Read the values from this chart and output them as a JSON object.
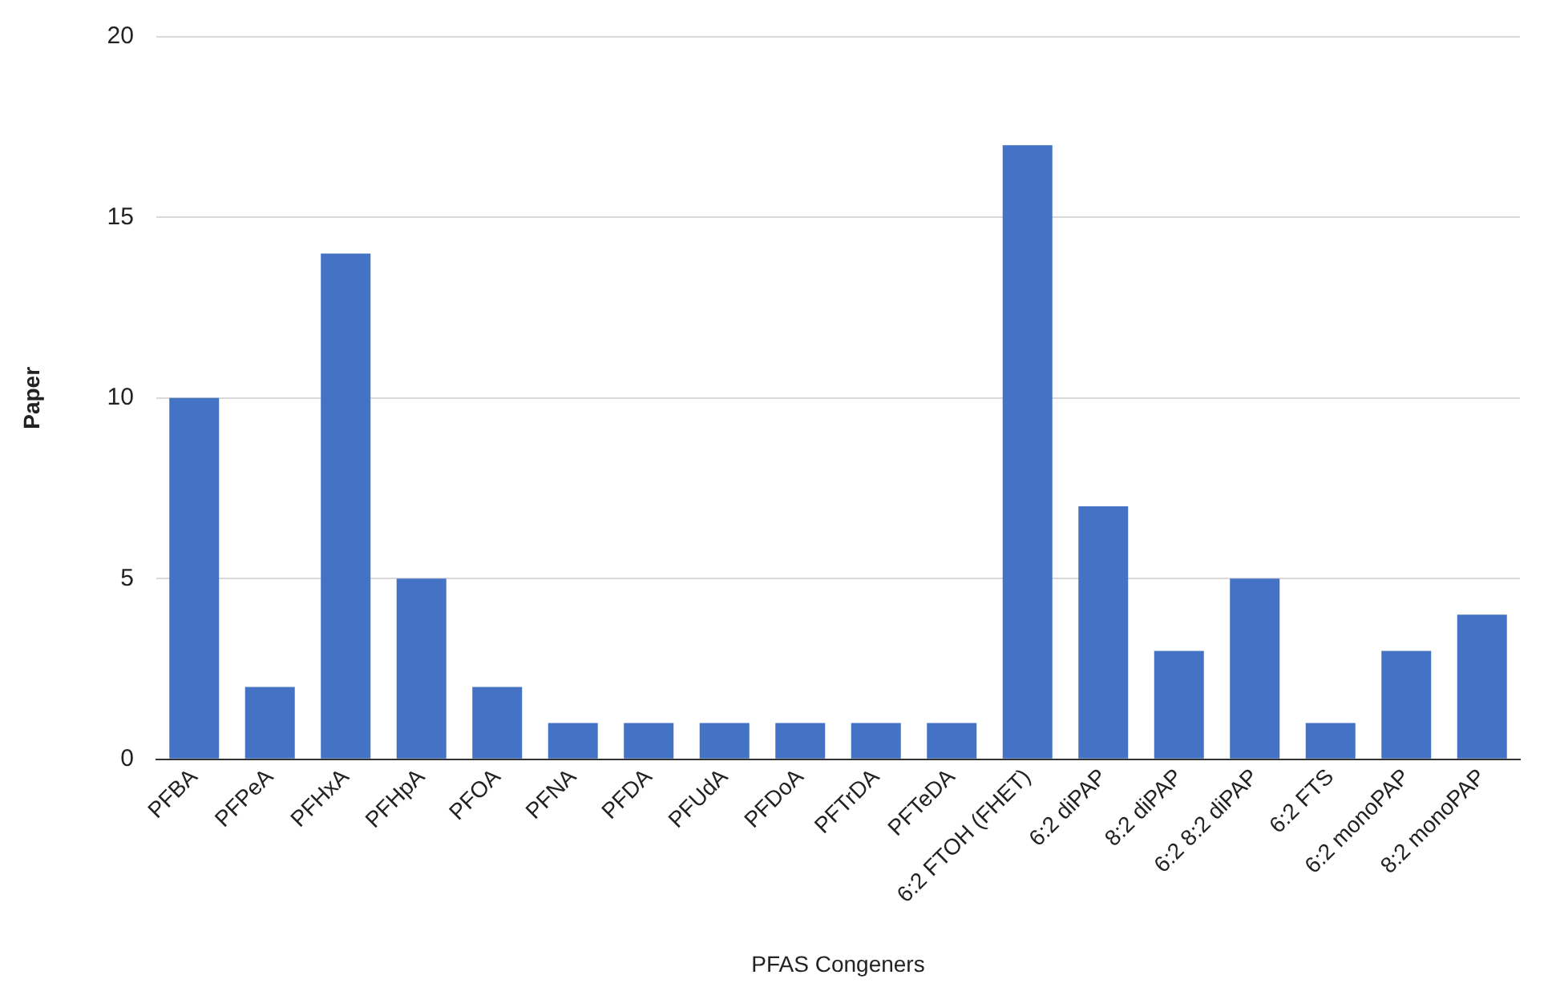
{
  "chart_data": {
    "type": "bar",
    "xlabel": "PFAS Congeners",
    "ylabel": "Paper",
    "categories": [
      "PFBA",
      "PFPeA",
      "PFHxA",
      "PFHpA",
      "PFOA",
      "PFNA",
      "PFDA",
      "PFUdA",
      "PFDoA",
      "PFTrDA",
      "PFTeDA",
      "6:2 FTOH (FHET)",
      "6:2 diPAP",
      "8:2 diPAP",
      "6:2 8:2 diPAP",
      "6:2 FTS",
      "6:2 monoPAP",
      "8:2 monoPAP"
    ],
    "values": [
      10,
      2,
      14,
      5,
      2,
      1,
      1,
      1,
      1,
      1,
      1,
      17,
      7,
      3,
      5,
      1,
      3,
      4
    ],
    "color": "#4472c4",
    "ylim": [
      0,
      20
    ],
    "yticks": [
      0,
      5,
      10,
      15,
      20
    ],
    "grid": "y"
  }
}
